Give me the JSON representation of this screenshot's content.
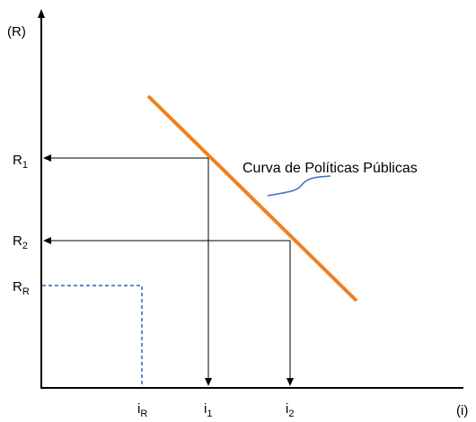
{
  "axes": {
    "y_label": "(R)",
    "x_label": "(i)"
  },
  "y_points": [
    {
      "base": "R",
      "sub": "1"
    },
    {
      "base": "R",
      "sub": "2"
    },
    {
      "base": "R",
      "sub": "R"
    }
  ],
  "x_points": [
    {
      "base": "i",
      "sub": "R"
    },
    {
      "base": "i",
      "sub": "1"
    },
    {
      "base": "i",
      "sub": "2"
    }
  ],
  "curve": {
    "label": "Curva de Políticas Públicas"
  }
}
